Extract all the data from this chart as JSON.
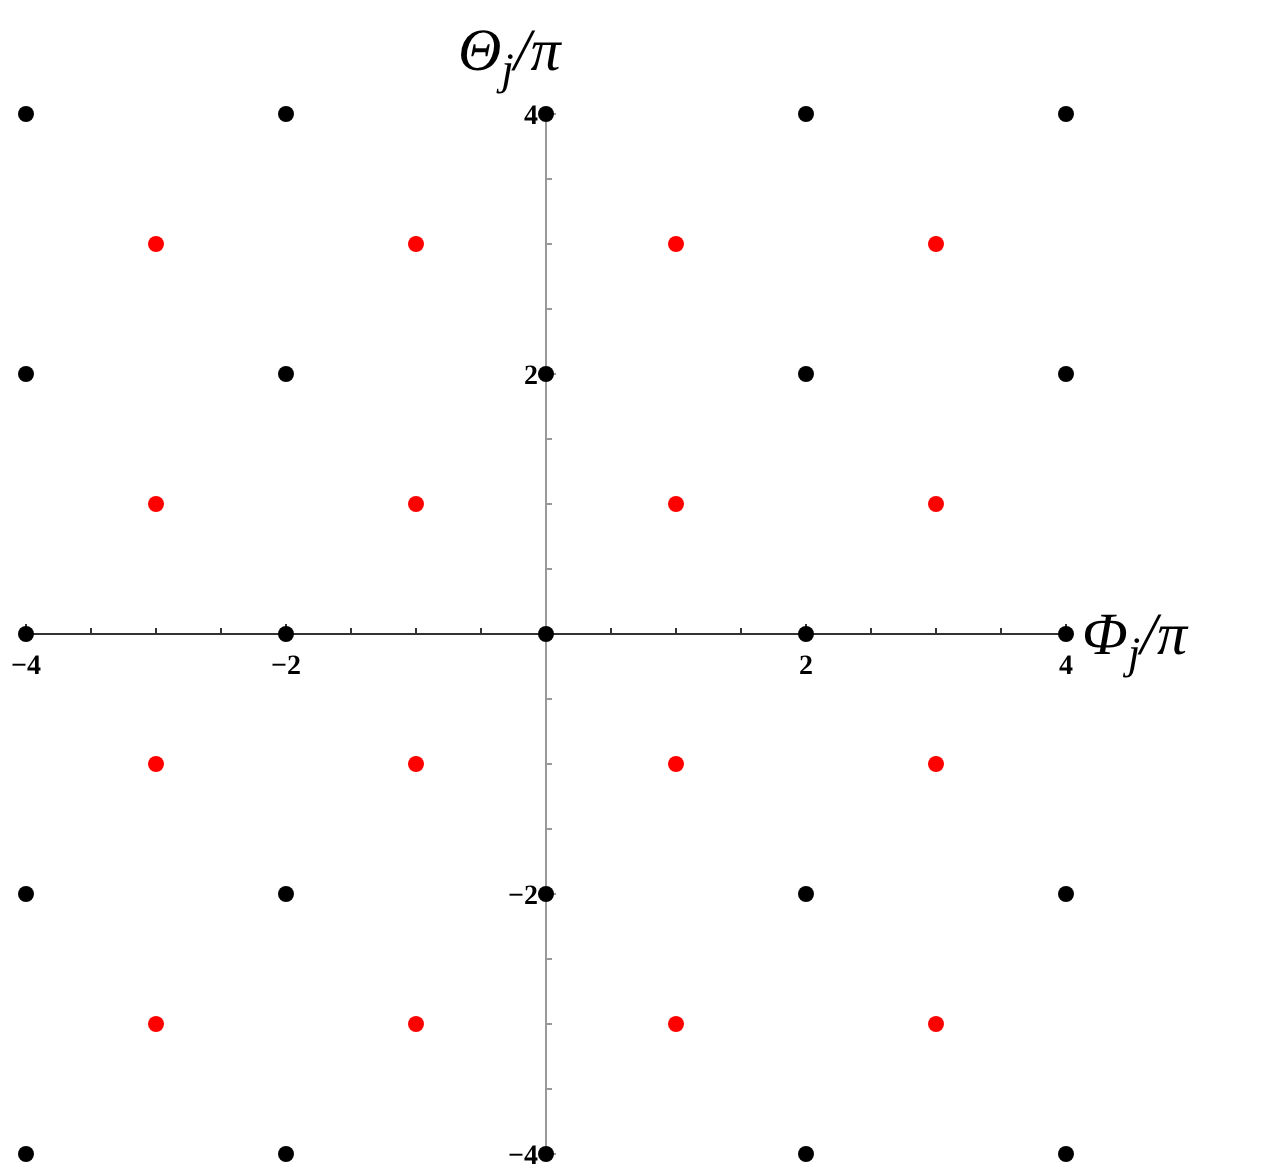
{
  "chart_data": {
    "type": "scatter",
    "xlabel": "Φ$_{j}$/π",
    "ylabel": "Θ$_{j}$/π",
    "xlim": [
      -4,
      4
    ],
    "ylim": [
      -4,
      4
    ],
    "xticks": [
      -4,
      {
        "value": -3.5,
        "label": null
      },
      {
        "value": -3,
        "label": null
      },
      {
        "value": -2.5,
        "label": null
      },
      -2,
      {
        "value": -1.5,
        "label": null
      },
      {
        "value": -1,
        "label": null
      },
      {
        "value": -0.5,
        "label": null
      },
      {
        "value": 0,
        "label": null
      },
      {
        "value": 0.5,
        "label": null
      },
      {
        "value": 1,
        "label": null
      },
      {
        "value": 1.5,
        "label": null
      },
      2,
      {
        "value": 2.5,
        "label": null
      },
      {
        "value": 3,
        "label": null
      },
      {
        "value": 3.5,
        "label": null
      },
      4
    ],
    "yticks": [
      -4,
      {
        "value": -3.5,
        "label": null
      },
      {
        "value": -3,
        "label": null
      },
      {
        "value": -2.5,
        "label": null
      },
      -2,
      {
        "value": -1.5,
        "label": null
      },
      {
        "value": -1,
        "label": null
      },
      {
        "value": -0.5,
        "label": null
      },
      {
        "value": 0,
        "label": null
      },
      {
        "value": 0.5,
        "label": null
      },
      {
        "value": 1,
        "label": null
      },
      {
        "value": 1.5,
        "label": null
      },
      2,
      {
        "value": 2.5,
        "label": null
      },
      {
        "value": 3,
        "label": null
      },
      {
        "value": 3.5,
        "label": null
      },
      4
    ],
    "marker": "circle",
    "grid": false,
    "series": [
      {
        "color": "#000000",
        "x": [
          -4,
          -4,
          -4,
          -4,
          -4,
          -2,
          -2,
          -2,
          -2,
          -2,
          0,
          0,
          0,
          0,
          0,
          2,
          2,
          2,
          2,
          2,
          4,
          4,
          4,
          4,
          4
        ],
        "values": [
          -4,
          -2,
          0,
          2,
          4,
          -4,
          -2,
          0,
          2,
          4,
          -4,
          -2,
          0,
          2,
          4,
          -4,
          -2,
          0,
          2,
          4,
          -4,
          -2,
          0,
          2,
          4
        ]
      },
      {
        "color": "#ff0000",
        "x": [
          -3,
          -3,
          -3,
          -3,
          -1,
          -1,
          -1,
          -1,
          1,
          1,
          1,
          1,
          3,
          3,
          3,
          3
        ],
        "values": [
          -3,
          -1,
          1,
          3,
          -3,
          -1,
          1,
          3,
          -3,
          -1,
          1,
          3,
          -3,
          -1,
          1,
          3
        ]
      }
    ]
  }
}
